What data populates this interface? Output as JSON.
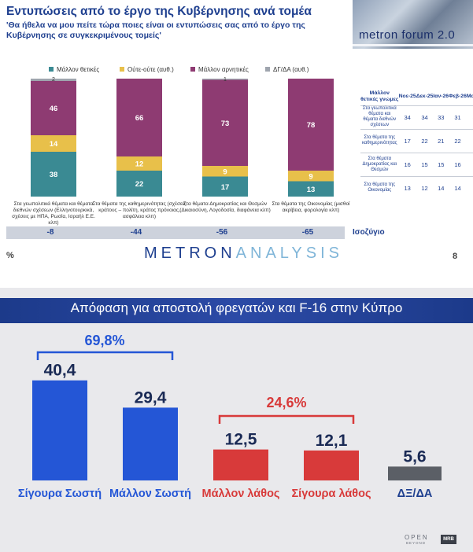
{
  "top": {
    "title": "Εντυπώσεις από το έργο της Κυβέρνησης ανά τομέα",
    "subtitle": "'Θα ήθελα να μου πείτε τώρα ποιες είναι οι εντυπώσεις σας από το έργο της Κυβέρνησης σε συγκεκριμένους τομείς'",
    "forum_logo": "metron forum 2.0",
    "isozygio_label": "Ισοζύγιο",
    "percent_sign": "%",
    "brand_part1": "METRON",
    "brand_part2": "ANALYSIS",
    "page_number": "8",
    "colors": {
      "positive": "#3a8a93",
      "neutral": "#e8c04a",
      "negative": "#8e3b72",
      "dk": "#9fa5ae"
    },
    "table": {
      "header": [
        "Μάλλον θετικές γνώμες",
        "Νοε-25",
        "Δεκ-25",
        "Ιαν-26",
        "Φεβ-26",
        "Μαρ-26"
      ],
      "rows": [
        {
          "label": "Στα γεωπολιτικά θέματα και θέματα διεθνών σχέσεων",
          "values": [
            "34",
            "34",
            "33",
            "31",
            "38"
          ]
        },
        {
          "label": "Στα θέματα της καθημερινότητας",
          "values": [
            "17",
            "22",
            "21",
            "22",
            "22"
          ]
        },
        {
          "label": "Στα θέματα Δημοκρατίας και Θεσμών",
          "values": [
            "16",
            "15",
            "15",
            "16",
            "17"
          ]
        },
        {
          "label": "Στα θέματα της Οικονομίας",
          "values": [
            "13",
            "12",
            "14",
            "14",
            "13"
          ]
        }
      ]
    }
  },
  "bottom": {
    "title": "Απόφαση για αποστολή φρεγατών και F-16 στην Κύπρο",
    "positive_total": "69,8%",
    "negative_total": "24,6%",
    "logo_open": "OPEN",
    "logo_open_sub": "BEYOND",
    "logo_mrb": "MRB"
  },
  "chart_data": [
    {
      "type": "bar",
      "stacked": true,
      "title": "Εντυπώσεις από το έργο της Κυβέρνησης ανά τομέα",
      "categories": [
        "Στα γεωπολιτικά θέματα και θέματα διεθνών σχέσεων (Ελληνοτουρκικά, σχέσεις με ΗΠΑ, Ρωσία, Ισραήλ Ε.Ε. κλπ)",
        "Στα θέματα της καθημερινότητας (σχέσεις κράτους – πολίτη, κράτος πρόνοιας, ασφάλεια κλπ)",
        "Στα θέματα Δημοκρατίας και Θεσμών (Δικαιοσύνη, Λογοδοσία, διαφάνεια κλπ)",
        "Στα θέματα της Οικονομίας (μισθοί ακρίβεια, φορολογία κλπ)"
      ],
      "series": [
        {
          "name": "Μάλλον θετικές",
          "values": [
            38,
            22,
            17,
            13
          ]
        },
        {
          "name": "Ούτε-ούτε (αυθ.)",
          "values": [
            14,
            12,
            9,
            9
          ]
        },
        {
          "name": "Μάλλον αρνητικές",
          "values": [
            46,
            66,
            73,
            78
          ]
        },
        {
          "name": "ΔΓ/ΔΑ (αυθ.)",
          "values": [
            2,
            0,
            1,
            0
          ]
        }
      ],
      "balance": [
        "-8",
        "-44",
        "-56",
        "-65"
      ],
      "ylim": [
        0,
        100
      ]
    },
    {
      "type": "bar",
      "title": "Απόφαση για αποστολή φρεγατών και F-16 στην Κύπρο",
      "categories": [
        "Σίγουρα Σωστή",
        "Μάλλον Σωστή",
        "Μάλλον λάθος",
        "Σίγουρα λάθος",
        "ΔΞ/ΔΑ"
      ],
      "values": [
        40.4,
        29.4,
        12.5,
        12.1,
        5.6
      ],
      "value_labels": [
        "40,4",
        "29,4",
        "12,5",
        "12,1",
        "5,6"
      ],
      "colors": [
        "#2456d6",
        "#2456d6",
        "#d83a3a",
        "#d83a3a",
        "#5b5f66"
      ],
      "ylim": [
        0,
        45
      ]
    }
  ]
}
